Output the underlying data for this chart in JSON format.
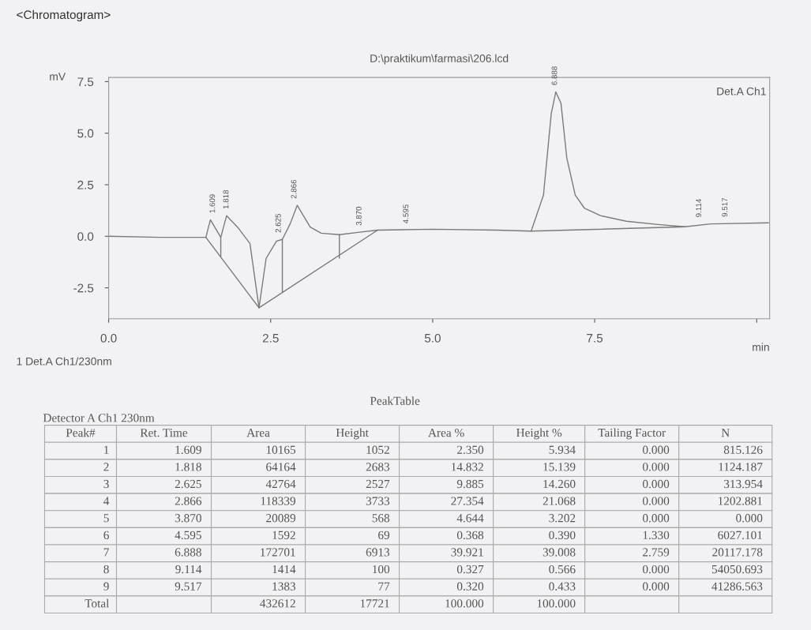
{
  "chart_data": {
    "type": "line",
    "title": "D:\\praktikum\\farmasi\\206.lcd",
    "ylabel": "mV",
    "xlabel": "min",
    "series": [
      {
        "color": "#7a7a7a",
        "x": [
          0,
          0.8,
          1.5,
          1.57,
          1.73,
          1.82,
          2.0,
          2.18,
          2.32,
          2.43,
          2.59,
          2.68,
          2.8,
          2.91,
          3.11,
          3.28,
          3.56,
          3.87,
          4.15,
          5.0,
          6.0,
          6.52,
          6.71,
          6.83,
          6.9,
          6.98,
          7.07,
          7.2,
          7.34,
          7.59,
          7.99,
          8.48,
          8.89,
          9.29,
          10.18
        ],
        "values": [
          0,
          -0.05,
          -0.05,
          0.8,
          -0.05,
          1.0,
          0.4,
          -0.35,
          -3.47,
          -1.07,
          -0.23,
          -0.15,
          0.6,
          1.5,
          0.45,
          0.15,
          0.08,
          0.2,
          0.3,
          0.34,
          0.3,
          0.25,
          2.0,
          5.95,
          7.0,
          6.45,
          3.8,
          2.0,
          1.37,
          1.0,
          0.73,
          0.57,
          0.46,
          0.6,
          0.65
        ]
      },
      {
        "color": "#7a7a7a",
        "x": [
          1.5,
          2.32,
          4.15,
          null,
          1.73,
          1.73,
          null,
          2.68,
          2.68,
          null,
          3.56,
          3.56,
          null,
          6.52,
          8.89
        ],
        "values": [
          -0.05,
          -3.47,
          0.3,
          null,
          -0.05,
          -1.0,
          null,
          -0.15,
          -2.7,
          null,
          0.08,
          -1.05,
          null,
          0.25,
          0.46
        ]
      }
    ],
    "xlim": [
      0,
      10.2
    ],
    "ylim": [
      -4.0,
      7.7
    ],
    "xticks": [
      {
        "value": 0,
        "label": "0.0"
      },
      {
        "value": 2.5,
        "label": "2.5"
      },
      {
        "value": 5,
        "label": "5.0"
      },
      {
        "value": 7.5,
        "label": "7.5"
      },
      {
        "value": 10,
        "label": null
      }
    ],
    "yticks": [
      {
        "value": -2.5,
        "label": "-2.5"
      },
      {
        "value": 0,
        "label": "0.0"
      },
      {
        "value": 2.5,
        "label": "2.5"
      },
      {
        "value": 5,
        "label": "5.0"
      },
      {
        "value": 7.5,
        "label": "7.5"
      }
    ],
    "grid": false,
    "annotations": [
      {
        "text": "1.609",
        "x": 1.609,
        "y": 0.8
      },
      {
        "text": "1.818",
        "x": 1.818,
        "y": 1.0
      },
      {
        "text": "2.625",
        "x": 2.625,
        "y": -0.15
      },
      {
        "text": "2.866",
        "x": 2.866,
        "y": 1.5
      },
      {
        "text": "3.870",
        "x": 3.87,
        "y": 0.2
      },
      {
        "text": "4.595",
        "x": 4.595,
        "y": 0.3
      },
      {
        "text": "6.888",
        "x": 6.888,
        "y": 7.0
      },
      {
        "text": "9.114",
        "x": 9.114,
        "y": 0.6
      },
      {
        "text": "9.517",
        "x": 9.517,
        "y": 0.62
      },
      "<Chromatogram>",
      "Det.A Ch1",
      "1 Det.A Ch1/230nm",
      "PeakTable",
      "Detector A Ch1 230nm",
      "Peak#",
      "Ret. Time",
      "Area",
      "Height",
      "Area %",
      "Height %",
      "Tailing Factor",
      "N",
      "1",
      "1.609",
      "10165",
      "1052",
      "2.350",
      "5.934",
      "0.000",
      "815.126",
      "2",
      "1.818",
      "64164",
      "2683",
      "14.832",
      "15.139",
      "0.000",
      "1124.187",
      "3",
      "2.625",
      "42764",
      "2527",
      "9.885",
      "14.260",
      "0.000",
      "313.954",
      "4",
      "2.866",
      "118339",
      "3733",
      "27.354",
      "21.068",
      "0.000",
      "1202.881",
      "5",
      "3.870",
      "20089",
      "568",
      "4.644",
      "3.202",
      "0.000",
      "0.000",
      "6",
      "4.595",
      "1592",
      "69",
      "0.368",
      "0.390",
      "1.330",
      "6027.101",
      "7",
      "6.888",
      "172701",
      "6913",
      "39.921",
      "39.008",
      "2.759",
      "20117.178",
      "8",
      "9.114",
      "1414",
      "100",
      "0.327",
      "0.566",
      "0.000",
      "54050.693",
      "9",
      "9.517",
      "1383",
      "77",
      "0.320",
      "0.433",
      "0.000",
      "41286.563",
      "Total",
      null,
      "432612",
      "17721",
      "100.000",
      "100.000",
      null,
      null
    ]
  }
}
